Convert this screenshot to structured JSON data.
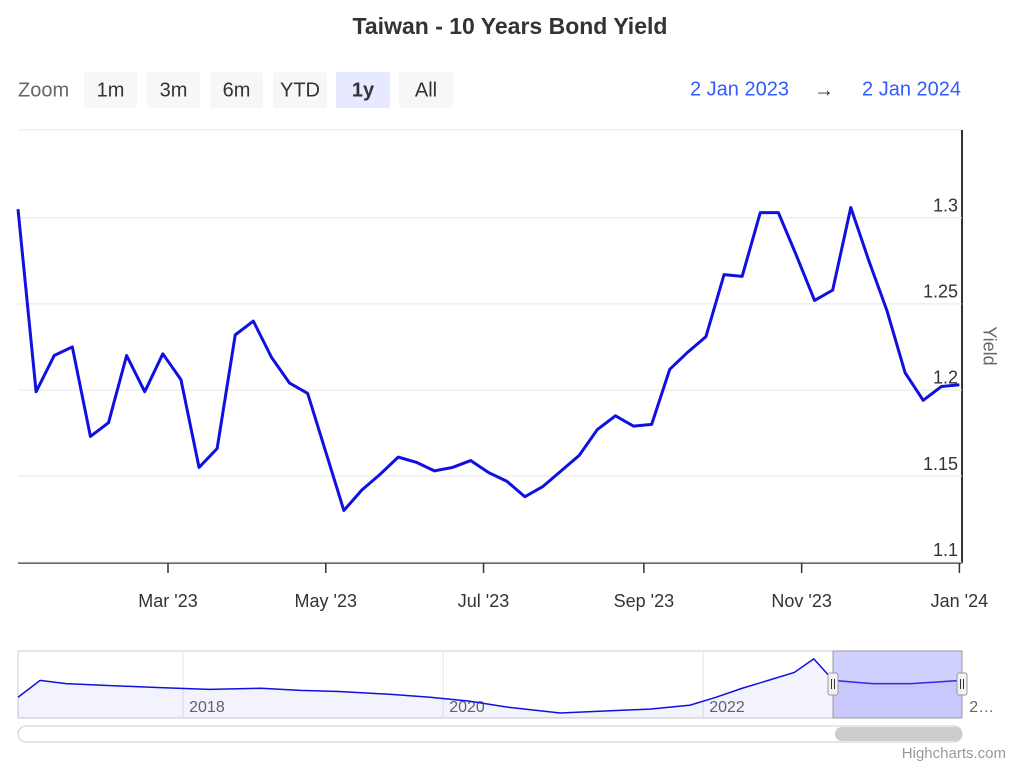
{
  "chart_data": {
    "type": "line",
    "title": "Taiwan - 10 Years Bond Yield",
    "zoom_label": "Zoom",
    "zoom_buttons": [
      "1m",
      "3m",
      "6m",
      "YTD",
      "1y",
      "All"
    ],
    "selected_button": 4,
    "range_from": "2 Jan 2023",
    "range_arrow": "→",
    "range_to": "2 Jan 2024",
    "y_axis_label": "Yield",
    "color": "#1010e0",
    "x": [
      "2023-01-02",
      "2023-01-09",
      "2023-01-16",
      "2023-01-23",
      "2023-01-30",
      "2023-02-06",
      "2023-02-13",
      "2023-02-20",
      "2023-02-27",
      "2023-03-06",
      "2023-03-13",
      "2023-03-20",
      "2023-03-27",
      "2023-04-03",
      "2023-04-10",
      "2023-04-17",
      "2023-04-24",
      "2023-05-01",
      "2023-05-08",
      "2023-05-15",
      "2023-05-22",
      "2023-05-29",
      "2023-06-05",
      "2023-06-12",
      "2023-06-19",
      "2023-06-26",
      "2023-07-03",
      "2023-07-10",
      "2023-07-17",
      "2023-07-24",
      "2023-07-31",
      "2023-08-07",
      "2023-08-14",
      "2023-08-21",
      "2023-08-28",
      "2023-09-04",
      "2023-09-11",
      "2023-09-18",
      "2023-09-25",
      "2023-10-02",
      "2023-10-09",
      "2023-10-16",
      "2023-10-23",
      "2023-10-30",
      "2023-11-06",
      "2023-11-13",
      "2023-11-20",
      "2023-11-27",
      "2023-12-04",
      "2023-12-11",
      "2023-12-18",
      "2023-12-25",
      "2024-01-01"
    ],
    "values": [
      1.305,
      1.199,
      1.22,
      1.225,
      1.173,
      1.181,
      1.22,
      1.199,
      1.221,
      1.206,
      1.155,
      1.166,
      1.232,
      1.24,
      1.219,
      1.204,
      1.198,
      1.164,
      1.13,
      1.142,
      1.151,
      1.161,
      1.158,
      1.153,
      1.155,
      1.159,
      1.152,
      1.147,
      1.138,
      1.144,
      1.153,
      1.162,
      1.177,
      1.185,
      1.179,
      1.18,
      1.212,
      1.222,
      1.231,
      1.267,
      1.266,
      1.303,
      1.303,
      1.278,
      1.252,
      1.258,
      1.306,
      1.275,
      1.246,
      1.21,
      1.194,
      1.202,
      1.203
    ],
    "xlim": [
      "2023-01-02",
      "2024-01-02"
    ],
    "xticks": [
      {
        "value": "2023-03-01",
        "label": "Mar '23"
      },
      {
        "value": "2023-05-01",
        "label": "May '23"
      },
      {
        "value": "2023-07-01",
        "label": "Jul '23"
      },
      {
        "value": "2023-09-01",
        "label": "Sep '23"
      },
      {
        "value": "2023-11-01",
        "label": "Nov '23"
      },
      {
        "value": "2024-01-01",
        "label": "Jan '24"
      }
    ],
    "ylim": [
      1.0995,
      1.351
    ],
    "yticks": [
      1.1,
      1.15,
      1.2,
      1.25,
      1.3
    ],
    "grid": true,
    "navigator": {
      "x": [
        2016.73,
        2016.9,
        2017.1,
        2017.4,
        2017.8,
        2018.2,
        2018.6,
        2018.9,
        2019.2,
        2019.6,
        2019.9,
        2020.2,
        2020.5,
        2020.9,
        2021.2,
        2021.6,
        2021.9,
        2022.1,
        2022.3,
        2022.5,
        2022.7,
        2022.85,
        2023.0,
        2023.3,
        2023.6,
        2023.99
      ],
      "values": [
        0.79,
        1.26,
        1.17,
        1.12,
        1.06,
        1.01,
        1.04,
        0.98,
        0.95,
        0.87,
        0.79,
        0.68,
        0.51,
        0.35,
        0.4,
        0.46,
        0.57,
        0.79,
        1.04,
        1.26,
        1.48,
        1.86,
        1.26,
        1.17,
        1.17,
        1.26
      ],
      "xlim": [
        2016.73,
        2023.99
      ],
      "ylim": [
        0.21,
        2.08
      ],
      "xticks": [
        2018,
        2020,
        2022,
        {
          "value": 2024,
          "label": "2…"
        }
      ]
    },
    "credits": "Highcharts.com"
  }
}
